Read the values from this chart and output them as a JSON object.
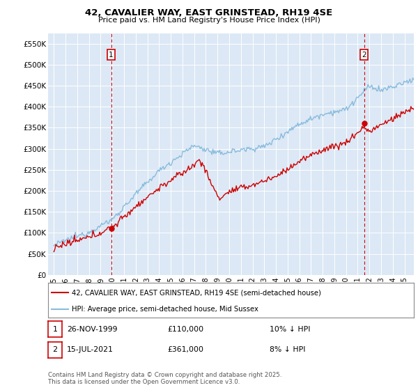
{
  "title": "42, CAVALIER WAY, EAST GRINSTEAD, RH19 4SE",
  "subtitle": "Price paid vs. HM Land Registry's House Price Index (HPI)",
  "legend_line1": "42, CAVALIER WAY, EAST GRINSTEAD, RH19 4SE (semi-detached house)",
  "legend_line2": "HPI: Average price, semi-detached house, Mid Sussex",
  "footnote": "Contains HM Land Registry data © Crown copyright and database right 2025.\nThis data is licensed under the Open Government Licence v3.0.",
  "marker1_label": "1",
  "marker1_date": "26-NOV-1999",
  "marker1_price": "£110,000",
  "marker1_hpi": "10% ↓ HPI",
  "marker1_x": 1999.9,
  "marker1_y": 110000,
  "marker2_label": "2",
  "marker2_date": "15-JUL-2021",
  "marker2_price": "£361,000",
  "marker2_hpi": "8% ↓ HPI",
  "marker2_x": 2021.54,
  "marker2_y": 361000,
  "price_color": "#cc0000",
  "hpi_color": "#88bbdd",
  "marker_color": "#cc0000",
  "vline_color": "#cc0000",
  "ylim": [
    0,
    575000
  ],
  "xlim": [
    1994.5,
    2025.8
  ],
  "yticks": [
    0,
    50000,
    100000,
    150000,
    200000,
    250000,
    300000,
    350000,
    400000,
    450000,
    500000,
    550000
  ],
  "ytick_labels": [
    "£0",
    "£50K",
    "£100K",
    "£150K",
    "£200K",
    "£250K",
    "£300K",
    "£350K",
    "£400K",
    "£450K",
    "£500K",
    "£550K"
  ],
  "background_color": "#dce8f5",
  "fig_bg": "#ffffff"
}
